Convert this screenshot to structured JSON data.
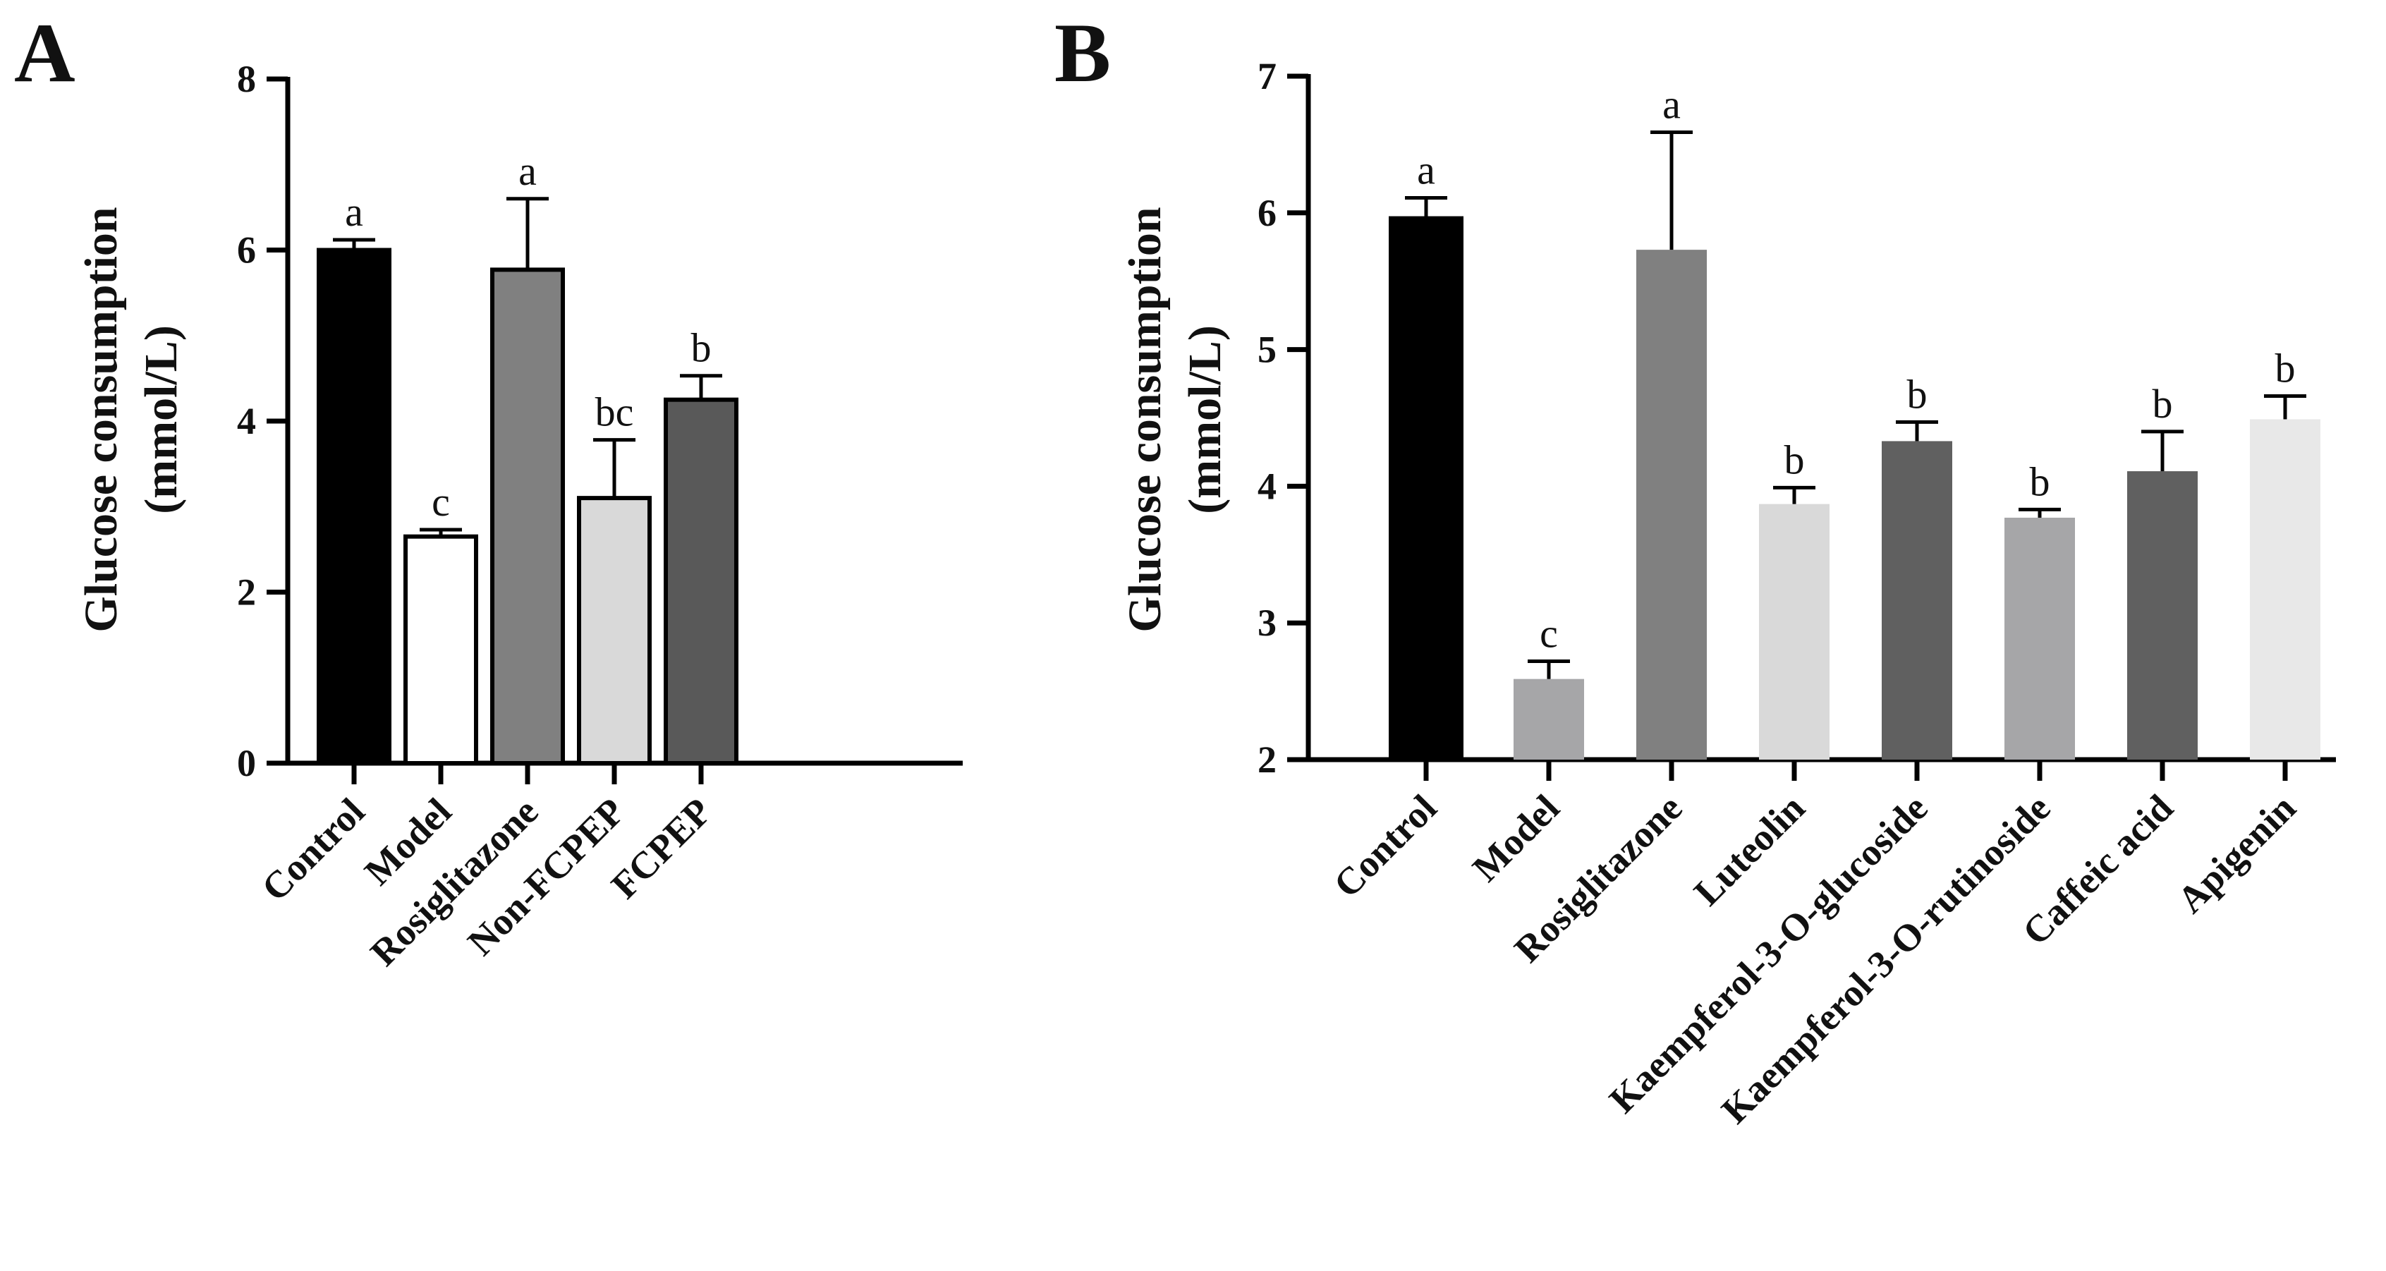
{
  "chart_data": [
    {
      "type": "bar",
      "panel": "A",
      "title": "",
      "ylabel_line1": "Glucose consumption",
      "ylabel_line2": "(mmol/L)",
      "xlabel": "",
      "ylim": [
        0,
        8
      ],
      "yticks": [
        0,
        2,
        4,
        6,
        8
      ],
      "categories": [
        "Control",
        "Model",
        "Rosiglitazone",
        "Non-FCPEP",
        "FCPEP"
      ],
      "values": [
        6.0,
        2.65,
        5.77,
        3.1,
        4.25
      ],
      "errors": [
        0.12,
        0.08,
        0.83,
        0.68,
        0.28
      ],
      "significance": [
        "a",
        "c",
        "a",
        "bc",
        "b"
      ],
      "bar_colors": [
        "#000000",
        "#ffffff",
        "#808080",
        "#d9d9d9",
        "#595959"
      ]
    },
    {
      "type": "bar",
      "panel": "B",
      "title": "",
      "ylabel_line1": "Glucose consumption",
      "ylabel_line2": "(mmol/L)",
      "xlabel": "",
      "ylim": [
        2,
        7
      ],
      "yticks": [
        2,
        3,
        4,
        5,
        6,
        7
      ],
      "categories": [
        "Control",
        "Model",
        "Rosiglitazone",
        "Luteolin",
        "Kaempferol-3-O-glucoside",
        "Kaempferol-3-O-rutinoside",
        "Caffeic acid",
        "Apigenin"
      ],
      "values": [
        5.96,
        2.59,
        5.73,
        3.87,
        4.33,
        3.77,
        4.11,
        4.49
      ],
      "errors": [
        0.15,
        0.13,
        0.86,
        0.12,
        0.14,
        0.06,
        0.29,
        0.17
      ],
      "significance": [
        "a",
        "c",
        "a",
        "b",
        "b",
        "b",
        "b",
        "b"
      ],
      "bar_colors": [
        "#000000",
        "#a6a6a8",
        "#808080",
        "#d9d9d9",
        "#606060",
        "#a6a6a8",
        "#606060",
        "#e8e8e8"
      ]
    }
  ]
}
